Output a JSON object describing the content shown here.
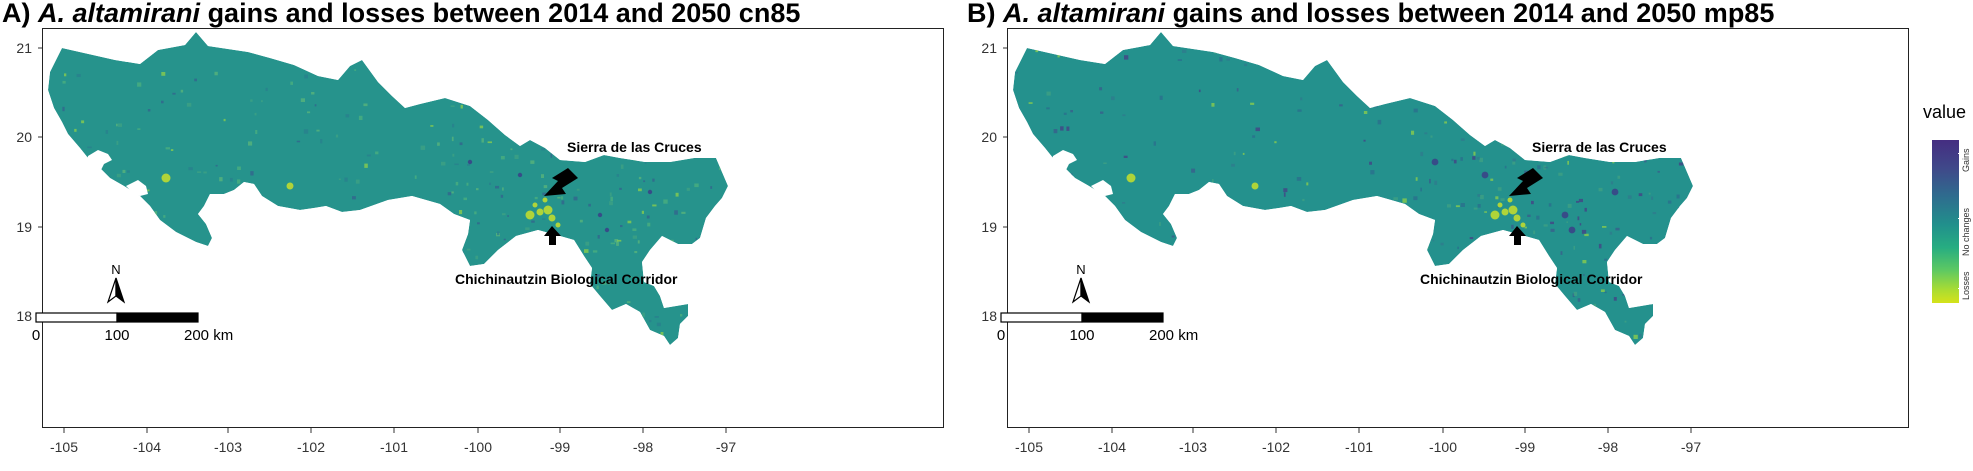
{
  "panels": [
    {
      "id": "A",
      "title_prefix": "A) ",
      "title_species": "A. altamirani",
      "title_rest": " gains and losses between 2014 and 2050 cn85"
    },
    {
      "id": "B",
      "title_prefix": "B) ",
      "title_species": "A. altamirani",
      "title_rest": " gains and losses between 2014 and 2050 mp85"
    }
  ],
  "axes": {
    "x_ticks": [
      "-105",
      "-104",
      "-103",
      "-102",
      "-101",
      "-100",
      "-99",
      "-98",
      "-97"
    ],
    "y_ticks": [
      "21",
      "20",
      "19",
      "18"
    ],
    "x_range": [
      -105.3,
      -96.9
    ],
    "y_range": [
      17.6,
      21.3
    ]
  },
  "annotations": {
    "sierra": "Sierra de las Cruces",
    "chichinautzin": "Chichinautzin Biological Corridor"
  },
  "scale_bar": {
    "labels": [
      "0",
      "100",
      "200 km"
    ]
  },
  "north_arrow": {
    "label": "N"
  },
  "legend": {
    "title": "value",
    "labels": [
      "Gains",
      "No changes",
      "Losses"
    ],
    "colors": [
      "#452d81",
      "#21908c",
      "#d5e21a"
    ]
  }
}
